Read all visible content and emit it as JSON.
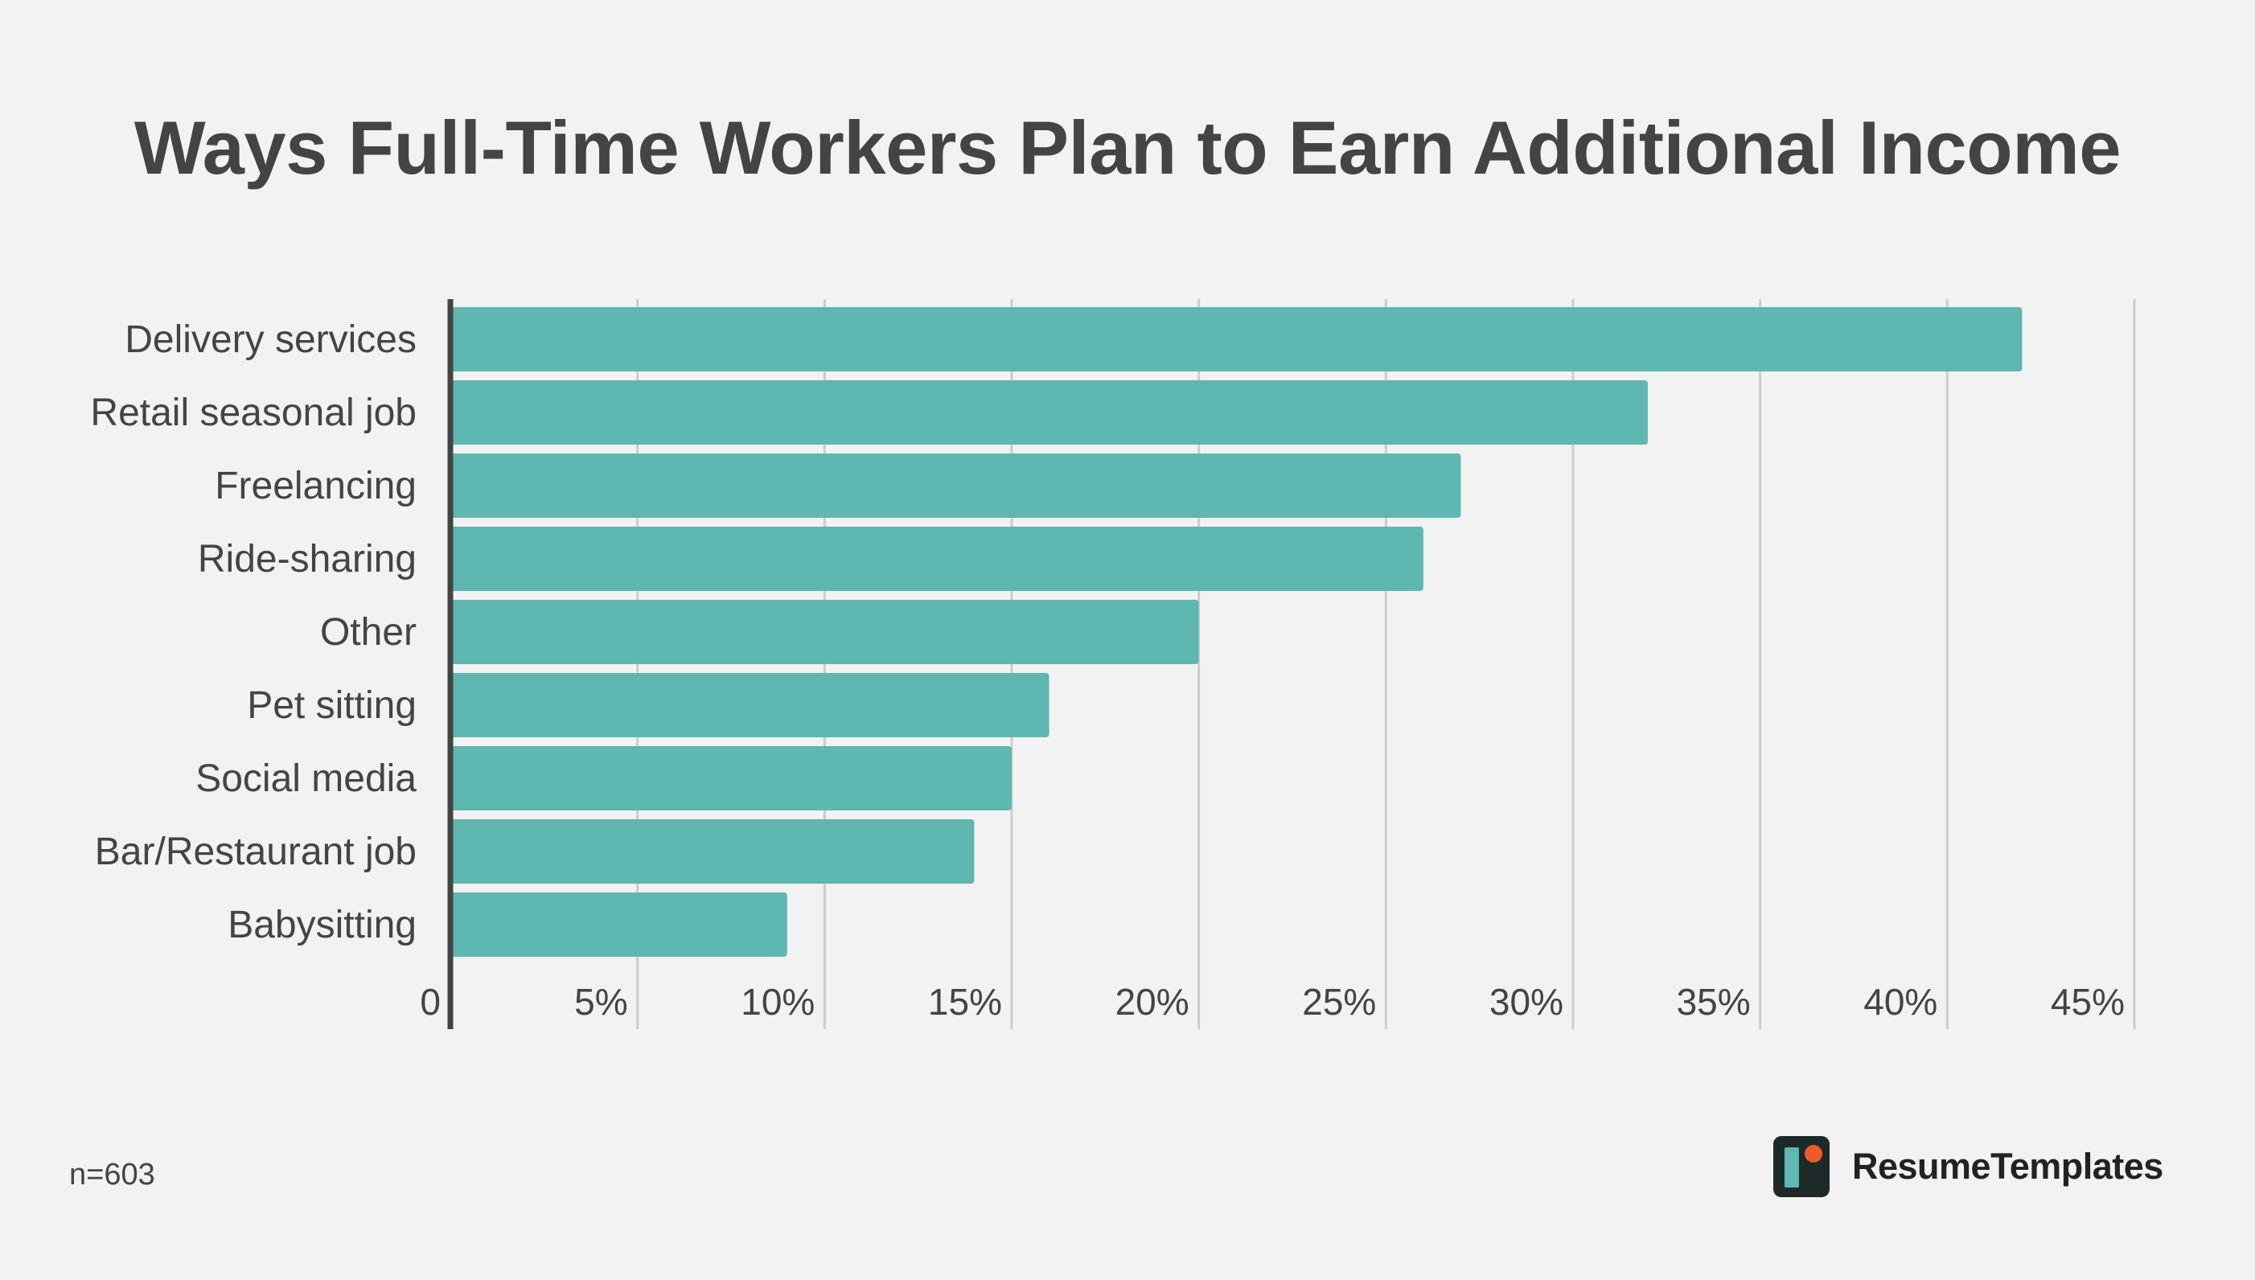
{
  "chart_data": {
    "type": "bar",
    "orientation": "horizontal",
    "title": "Ways Full-Time Workers Plan to Earn Additional Income",
    "categories": [
      "Delivery services",
      "Retail seasonal job",
      "Freelancing",
      "Ride-sharing",
      "Other",
      "Pet sitting",
      "Social media",
      "Bar/Restaurant job",
      "Babysitting"
    ],
    "values": [
      42,
      32,
      27,
      26,
      20,
      16,
      15,
      14,
      9
    ],
    "unit": "%",
    "xlim": [
      0,
      45
    ],
    "xticks": [
      {
        "value": 0,
        "label": "0"
      },
      {
        "value": 5,
        "label": "5%"
      },
      {
        "value": 10,
        "label": "10%"
      },
      {
        "value": 15,
        "label": "15%"
      },
      {
        "value": 20,
        "label": "20%"
      },
      {
        "value": 25,
        "label": "25%"
      },
      {
        "value": 30,
        "label": "30%"
      },
      {
        "value": 35,
        "label": "35%"
      },
      {
        "value": 40,
        "label": "40%"
      },
      {
        "value": 45,
        "label": "45%"
      }
    ],
    "grid": true,
    "legend": "none",
    "colors": {
      "bar": "#5eb7b0",
      "grid": "#cccccc",
      "axis": "#444444",
      "text": "#444444"
    }
  },
  "footnote": "n=603",
  "brand": {
    "name": "ResumeTemplates",
    "logo_icon": "resumetemplates-logo-icon",
    "logo_colors": {
      "tile": "#1e2a2a",
      "bar": "#5eb7b0",
      "dot": "#f05a28"
    }
  }
}
